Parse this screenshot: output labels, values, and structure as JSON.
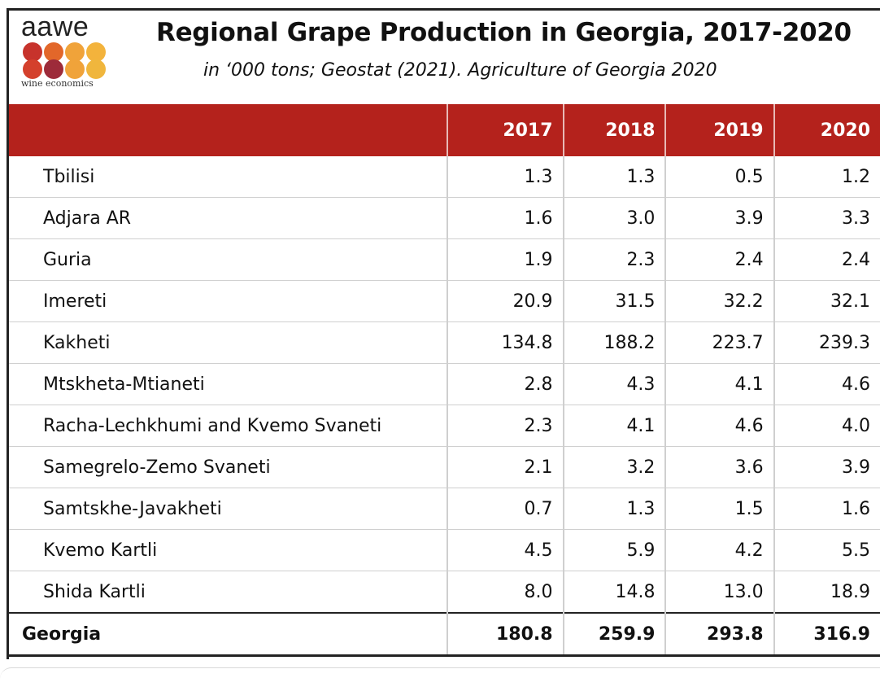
{
  "logo": {
    "word": "aawe",
    "sub": "wine economics",
    "dot_colors": [
      "#c7332c",
      "#e2672a",
      "#f0a33a",
      "#f3b33c",
      "#d4402c",
      "#9d2b3a",
      "#f0a33a",
      "#f0b63d"
    ]
  },
  "chart_data": {
    "type": "table",
    "title": "Regional Grape Production in Georgia, 2017-2020",
    "subtitle": "in ‘000 tons; Geostat (2021). Agriculture of Georgia 2020",
    "header_color": "#b4221c",
    "columns": [
      "",
      "2017",
      "2018",
      "2019",
      "2020"
    ],
    "rows": [
      {
        "label": "Tbilisi",
        "values": [
          "1.3",
          "1.3",
          "0.5",
          "1.2"
        ]
      },
      {
        "label": "Adjara AR",
        "values": [
          "1.6",
          "3.0",
          "3.9",
          "3.3"
        ]
      },
      {
        "label": "Guria",
        "values": [
          "1.9",
          "2.3",
          "2.4",
          "2.4"
        ]
      },
      {
        "label": "Imereti",
        "values": [
          "20.9",
          "31.5",
          "32.2",
          "32.1"
        ]
      },
      {
        "label": "Kakheti",
        "values": [
          "134.8",
          "188.2",
          "223.7",
          "239.3"
        ]
      },
      {
        "label": "Mtskheta-Mtianeti",
        "values": [
          "2.8",
          "4.3",
          "4.1",
          "4.6"
        ]
      },
      {
        "label": "Racha-Lechkhumi and Kvemo Svaneti",
        "values": [
          "2.3",
          "4.1",
          "4.6",
          "4.0"
        ]
      },
      {
        "label": "Samegrelo-Zemo Svaneti",
        "values": [
          "2.1",
          "3.2",
          "3.6",
          "3.9"
        ]
      },
      {
        "label": "Samtskhe-Javakheti",
        "values": [
          "0.7",
          "1.3",
          "1.5",
          "1.6"
        ]
      },
      {
        "label": "Kvemo Kartli",
        "values": [
          "4.5",
          "5.9",
          "4.2",
          "5.5"
        ]
      },
      {
        "label": "Shida Kartli",
        "values": [
          "8.0",
          "14.8",
          "13.0",
          "18.9"
        ]
      }
    ],
    "total": {
      "label": "Georgia",
      "values": [
        "180.8",
        "259.9",
        "293.8",
        "316.9"
      ]
    }
  }
}
